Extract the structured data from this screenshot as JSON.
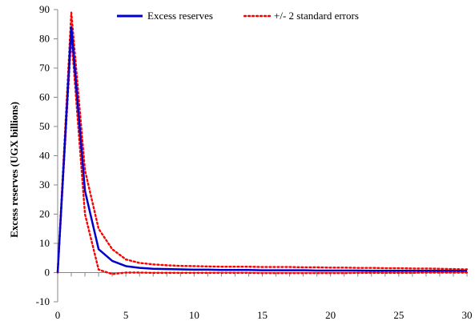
{
  "chart_data": {
    "type": "line",
    "ylabel": "Excess reserves (UGX billions)",
    "xlabel": "",
    "xlim": [
      0,
      30
    ],
    "ylim": [
      -10,
      90
    ],
    "x_ticks": [
      0,
      5,
      10,
      15,
      20,
      25,
      30
    ],
    "y_ticks": [
      -10,
      0,
      10,
      20,
      30,
      40,
      50,
      60,
      70,
      80,
      90
    ],
    "grid": false,
    "legend_position": "top",
    "x": [
      0,
      1,
      2,
      3,
      4,
      5,
      6,
      7,
      8,
      9,
      10,
      11,
      12,
      13,
      14,
      15,
      16,
      17,
      18,
      19,
      20,
      21,
      22,
      23,
      24,
      25,
      26,
      27,
      28,
      29,
      30
    ],
    "series": [
      {
        "name": "Excess reserves",
        "color": "#0000cc",
        "style": "solid",
        "values": [
          0,
          84,
          28,
          8,
          4,
          2.2,
          1.6,
          1.3,
          1.2,
          1.1,
          1.0,
          1.0,
          0.9,
          0.9,
          0.9,
          0.8,
          0.8,
          0.8,
          0.8,
          0.7,
          0.7,
          0.7,
          0.7,
          0.6,
          0.6,
          0.6,
          0.6,
          0.6,
          0.6,
          0.6,
          0.6
        ]
      },
      {
        "name": "+/- 2 standard errors",
        "color": "#ff0000",
        "style": "dotted",
        "values": [
          0,
          89,
          35,
          15,
          8,
          4.5,
          3.3,
          2.8,
          2.5,
          2.3,
          2.2,
          2.1,
          2.0,
          2.0,
          2.0,
          1.9,
          1.9,
          1.9,
          1.8,
          1.8,
          1.7,
          1.7,
          1.6,
          1.6,
          1.5,
          1.5,
          1.4,
          1.4,
          1.3,
          1.2,
          1.1
        ]
      },
      {
        "name": "",
        "color": "#ff0000",
        "style": "dotted",
        "values": [
          0,
          81,
          20,
          1.0,
          -0.5,
          0,
          0,
          -0.1,
          -0.1,
          -0.1,
          -0.1,
          -0.1,
          -0.1,
          -0.1,
          -0.1,
          -0.2,
          -0.2,
          -0.2,
          -0.2,
          -0.2,
          -0.2,
          -0.2,
          -0.1,
          -0.1,
          -0.1,
          -0.1,
          -0.1,
          0,
          0,
          0,
          0
        ]
      }
    ]
  }
}
